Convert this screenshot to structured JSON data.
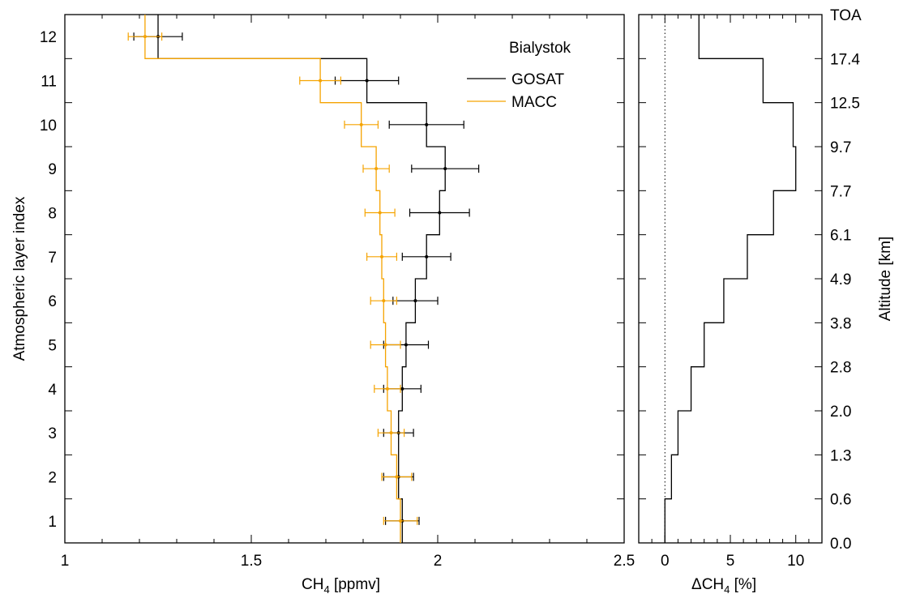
{
  "chart_data": [
    {
      "type": "line",
      "title": "",
      "xlabel_main": "CH",
      "xlabel_sub": "4",
      "xlabel_unit": " [ppmv]",
      "ylabel": "Atmospheric layer index",
      "xlim": [
        1,
        2.5
      ],
      "ylim": [
        0.5,
        12.5
      ],
      "xticks": [
        "1",
        "1.5",
        "2",
        "2.5"
      ],
      "xtick_values": [
        1,
        1.5,
        2,
        2.5
      ],
      "yticks": [
        "1",
        "2",
        "3",
        "4",
        "5",
        "6",
        "7",
        "8",
        "9",
        "10",
        "11",
        "12"
      ],
      "legend_title": "Bialystok",
      "legend_position": "top-right",
      "series": [
        {
          "name": "GOSAT",
          "color": "#000000",
          "layers": [
            1,
            2,
            3,
            4,
            5,
            6,
            7,
            8,
            9,
            10,
            11,
            12
          ],
          "values": [
            1.905,
            1.895,
            1.895,
            1.905,
            1.915,
            1.94,
            1.97,
            2.005,
            2.02,
            1.97,
            1.81,
            1.25
          ],
          "errors": [
            0.045,
            0.04,
            0.04,
            0.05,
            0.06,
            0.06,
            0.065,
            0.08,
            0.09,
            0.1,
            0.085,
            0.065
          ]
        },
        {
          "name": "MACC",
          "color": "#f5a300",
          "layers": [
            1,
            2,
            3,
            4,
            5,
            6,
            7,
            8,
            9,
            10,
            11,
            12
          ],
          "values": [
            1.9,
            1.89,
            1.875,
            1.865,
            1.86,
            1.855,
            1.85,
            1.845,
            1.835,
            1.795,
            1.685,
            1.215
          ],
          "errors": [
            0.045,
            0.04,
            0.035,
            0.035,
            0.04,
            0.035,
            0.04,
            0.04,
            0.035,
            0.045,
            0.055,
            0.045
          ]
        }
      ]
    },
    {
      "type": "line",
      "title": "",
      "xlabel_main": "ΔCH",
      "xlabel_sub": "4",
      "xlabel_unit": " [%]",
      "ylabel": "Altitude [km]",
      "xlim": [
        -2,
        12
      ],
      "ylim": [
        0.5,
        12.5
      ],
      "xticks": [
        "0",
        "5",
        "10"
      ],
      "xtick_values": [
        0,
        5,
        10
      ],
      "altitude_labels": [
        "0.0",
        "0.6",
        "1.3",
        "2.0",
        "2.8",
        "3.8",
        "4.9",
        "6.1",
        "7.7",
        "9.7",
        "12.5",
        "17.4",
        "TOA"
      ],
      "zero_line": "dotted",
      "series": [
        {
          "name": "",
          "color": "#000000",
          "layers": [
            1,
            2,
            3,
            4,
            5,
            6,
            7,
            8,
            9,
            10,
            11,
            12
          ],
          "values": [
            0,
            0.5,
            1.0,
            2.0,
            3.0,
            4.5,
            6.3,
            8.3,
            10.0,
            9.8,
            7.5,
            2.6
          ]
        }
      ]
    }
  ]
}
